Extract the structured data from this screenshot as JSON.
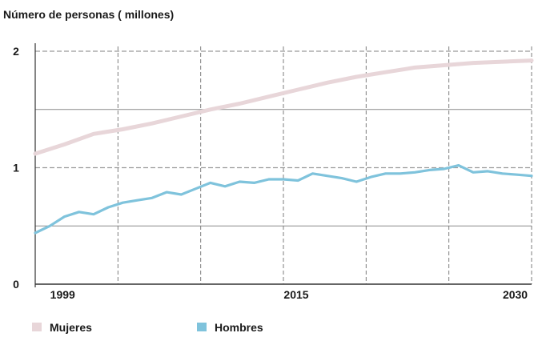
{
  "chart_data": {
    "type": "line",
    "title": "",
    "ylabel": "Número de personas ( millones)",
    "xlabel": "",
    "xlim": [
      1998,
      2032
    ],
    "ylim": [
      0,
      2
    ],
    "x_ticks": [
      1999,
      2015,
      2030
    ],
    "y_ticks": [
      0,
      1,
      2
    ],
    "grid": true,
    "legend_placement": "bottom-left",
    "series": [
      {
        "name": "Mujeres",
        "color": "#e8d6d9",
        "x": [
          1998,
          2000,
          2002,
          2004,
          2006,
          2008,
          2010,
          2012,
          2014,
          2016,
          2018,
          2020,
          2022,
          2024,
          2026,
          2028,
          2030,
          2032
        ],
        "y": [
          1.12,
          1.2,
          1.29,
          1.33,
          1.38,
          1.44,
          1.5,
          1.55,
          1.61,
          1.67,
          1.73,
          1.78,
          1.82,
          1.86,
          1.88,
          1.9,
          1.91,
          1.92
        ]
      },
      {
        "name": "Hombres",
        "color": "#7fc3dc",
        "x": [
          1998,
          1999,
          2000,
          2001,
          2002,
          2003,
          2004,
          2005,
          2006,
          2007,
          2008,
          2009,
          2010,
          2011,
          2012,
          2013,
          2014,
          2015,
          2016,
          2017,
          2018,
          2019,
          2020,
          2021,
          2022,
          2023,
          2024,
          2025,
          2026,
          2027,
          2028,
          2029,
          2030,
          2031,
          2032
        ],
        "y": [
          0.44,
          0.5,
          0.58,
          0.62,
          0.6,
          0.66,
          0.7,
          0.72,
          0.74,
          0.79,
          0.77,
          0.82,
          0.87,
          0.84,
          0.88,
          0.87,
          0.9,
          0.9,
          0.89,
          0.95,
          0.93,
          0.91,
          0.88,
          0.92,
          0.95,
          0.95,
          0.96,
          0.98,
          0.99,
          1.02,
          0.96,
          0.97,
          0.95,
          0.94,
          0.93
        ]
      }
    ]
  }
}
